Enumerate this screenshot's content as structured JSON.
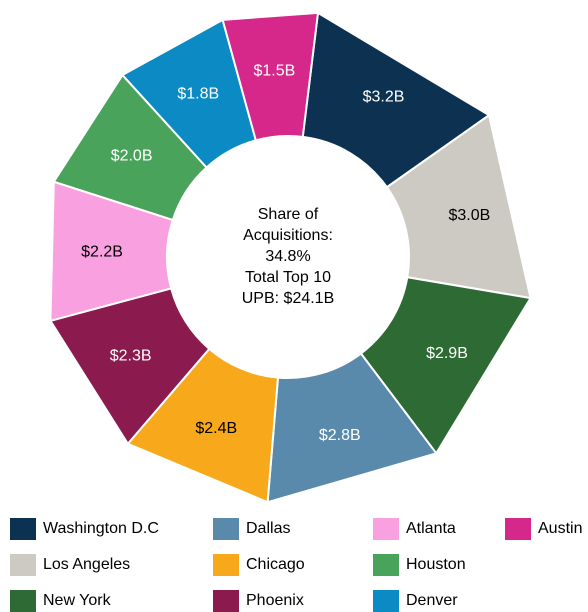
{
  "chart_data": {
    "type": "donut",
    "categories": [
      "Washington D.C",
      "Los Angeles",
      "New York",
      "Dallas",
      "Chicago",
      "Phoenix",
      "Atlanta",
      "Houston",
      "Denver",
      "Austin"
    ],
    "values": [
      3.2,
      3.0,
      2.9,
      2.8,
      2.4,
      2.3,
      2.2,
      2.0,
      1.8,
      1.5
    ],
    "value_labels": [
      "$3.2B",
      "$3.0B",
      "$2.9B",
      "$2.8B",
      "$2.4B",
      "$2.3B",
      "$2.2B",
      "$2.0B",
      "$1.8B",
      "$1.5B"
    ],
    "colors": [
      "#0d3251",
      "#cdc9c3",
      "#2e6b34",
      "#5a8aab",
      "#f7a81b",
      "#8b1a4f",
      "#f9a0e0",
      "#4aa35a",
      "#0b8ac4",
      "#d6288a"
    ],
    "center_text": [
      "Share of",
      "Acquisitions:",
      "34.8%",
      "Total Top 10",
      "UPB: $24.1B"
    ],
    "legend": "bottom"
  }
}
